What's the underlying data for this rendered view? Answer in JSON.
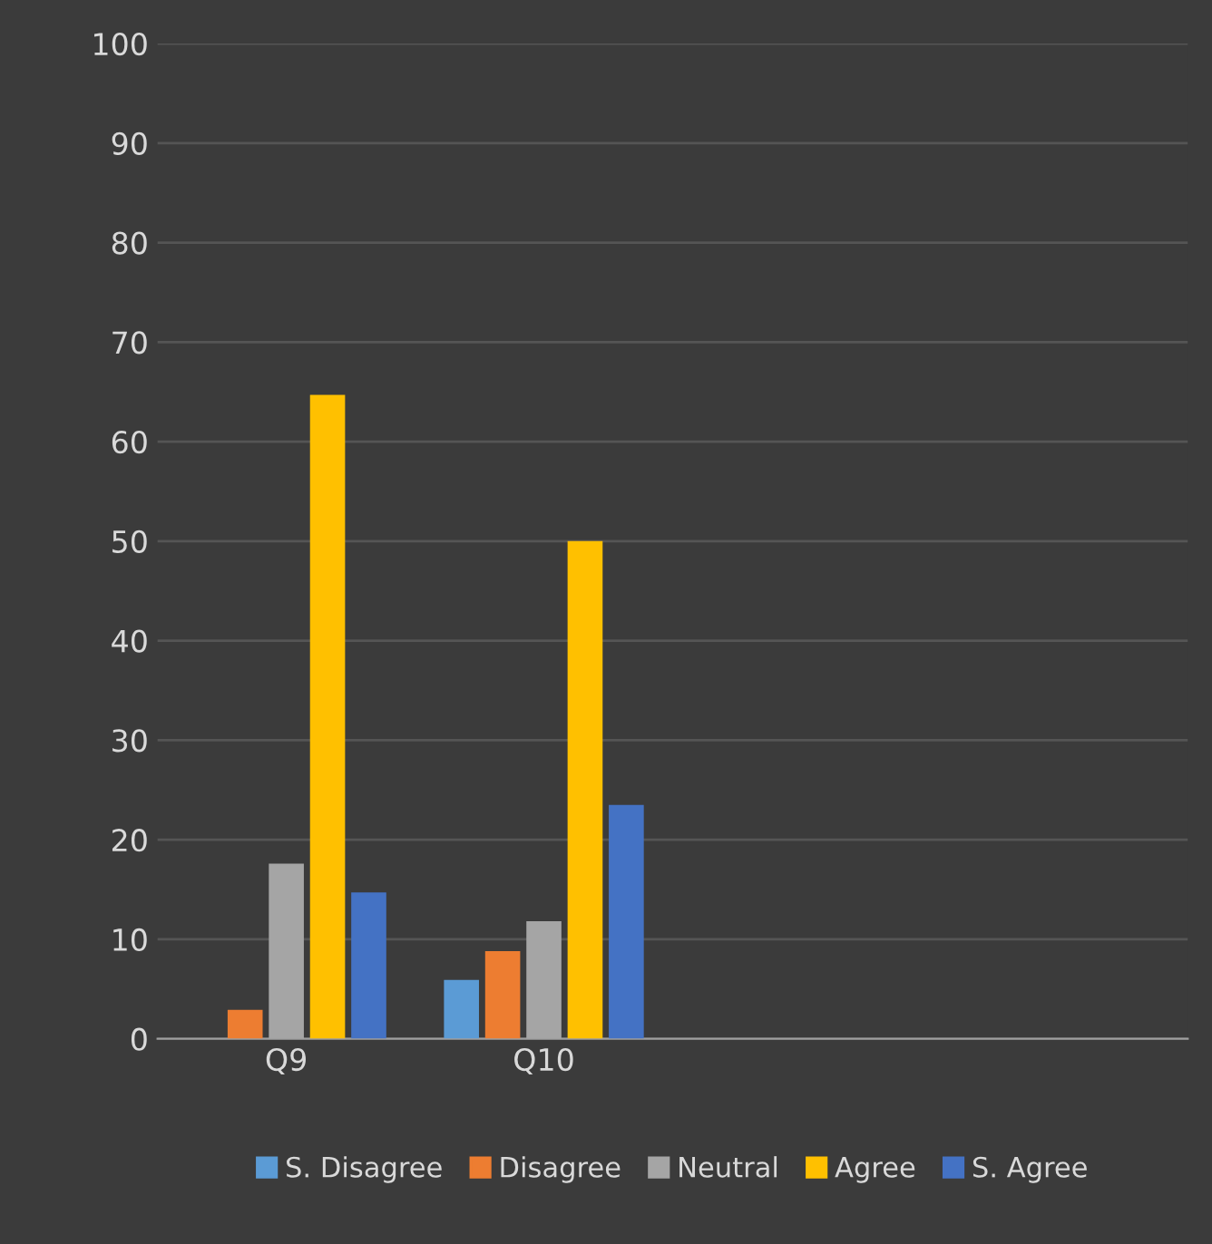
{
  "chart_data": {
    "type": "bar",
    "categories": [
      "Q9",
      "Q10",
      null,
      null
    ],
    "series": [
      {
        "name": "S. Disagree",
        "color": "#5b9bd5",
        "values": [
          0,
          5.9,
          null,
          null
        ]
      },
      {
        "name": "Disagree",
        "color": "#ed7d31",
        "values": [
          2.9,
          8.8,
          null,
          null
        ]
      },
      {
        "name": "Neutral",
        "color": "#a5a5a5",
        "values": [
          17.6,
          11.8,
          null,
          null
        ]
      },
      {
        "name": "Agree",
        "color": "#ffc000",
        "values": [
          64.7,
          50,
          null,
          null
        ]
      },
      {
        "name": "S. Agree",
        "color": "#4472c4",
        "values": [
          14.7,
          23.5,
          null,
          null
        ]
      }
    ],
    "ylim": [
      0,
      100
    ],
    "yticks": [
      0,
      10,
      20,
      30,
      40,
      50,
      60,
      70,
      80,
      90,
      100
    ],
    "grid": "y",
    "legend": "bottom"
  }
}
